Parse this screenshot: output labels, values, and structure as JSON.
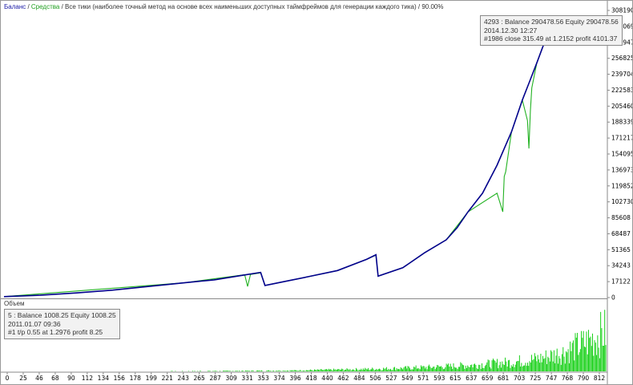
{
  "header": {
    "balance_label": "Баланс",
    "sep1": " / ",
    "equity_label": "Средства",
    "sep2": " / ",
    "mode_text": "Все тики (наиболее точный метод на основе всех наименьших доступных таймфреймов для генерации каждого тика)",
    "sep3": " / ",
    "quality": "90.00%"
  },
  "colors": {
    "balance": "#00008b",
    "equity": "#22b222",
    "volume": "#00cc00",
    "header_balance": "#1a1aa6",
    "header_equity": "#1f9e1f"
  },
  "tooltip_main": {
    "line1": "4293 : Balance 290478.56 Equity 290478.56",
    "line2": "2014.12.30 12:27",
    "line3": "#1986 close 315.49 at 1.2152 profit 4101.37"
  },
  "volume_panel": {
    "title": "Объем",
    "tooltip_line1": "5 : Balance 1008.25 Equity 1008.25",
    "tooltip_line2": "2011.01.07 09:36",
    "tooltip_line3": "#1 t/p 0.55 at 1.2976 profit 8.25"
  },
  "y_axis_labels": [
    "308190",
    "291069",
    "273947",
    "256825",
    "239704",
    "222583",
    "205460",
    "188339",
    "171217",
    "154095",
    "136973",
    "119852",
    "102730",
    "85608",
    "68487",
    "51365",
    "34243",
    "17122",
    "0"
  ],
  "x_axis_labels": [
    "0",
    "25",
    "46",
    "68",
    "90",
    "112",
    "134",
    "156",
    "178",
    "199",
    "221",
    "243",
    "265",
    "287",
    "309",
    "331",
    "353",
    "374",
    "396",
    "418",
    "440",
    "462",
    "484",
    "506",
    "527",
    "549",
    "571",
    "593",
    "615",
    "637",
    "659",
    "681",
    "703",
    "725",
    "747",
    "768",
    "790",
    "812"
  ],
  "chart_data": {
    "type": "line",
    "x_range": [
      0,
      830
    ],
    "y_range": [
      0,
      308190
    ],
    "grid": false,
    "series": [
      {
        "name": "Баланс",
        "x": [
          0,
          50,
          100,
          150,
          200,
          250,
          290,
          330,
          354,
          360,
          385,
          420,
          460,
          500,
          513,
          516,
          550,
          580,
          610,
          625,
          640,
          660,
          680,
          700,
          715,
          725,
          735,
          745,
          750
        ],
        "values": [
          1000,
          2500,
          5000,
          8000,
          12000,
          16000,
          19000,
          24000,
          27000,
          13000,
          17000,
          22500,
          29000,
          41000,
          46000,
          23000,
          32000,
          48000,
          62000,
          75000,
          92000,
          112000,
          142000,
          178000,
          212000,
          232000,
          252000,
          273000,
          290478
        ]
      },
      {
        "name": "Средства",
        "x": [
          0,
          250,
          332,
          336,
          340,
          354,
          360,
          385,
          420,
          460,
          500,
          513,
          516,
          550,
          580,
          610,
          640,
          680,
          688,
          690,
          692,
          700,
          715,
          722,
          724,
          726,
          728,
          735,
          745,
          750
        ],
        "values": [
          1000,
          16000,
          24500,
          12000,
          24800,
          26500,
          13000,
          17000,
          22500,
          29000,
          41000,
          45500,
          23000,
          32000,
          48000,
          62000,
          92000,
          112000,
          92000,
          130000,
          135000,
          178000,
          212000,
          190000,
          160000,
          200000,
          225000,
          252000,
          273000,
          290478
        ]
      }
    ],
    "volume": {
      "x": [
        0,
        100,
        200,
        300,
        400,
        500,
        550,
        600,
        650,
        700,
        740,
        770,
        800,
        830
      ],
      "values": [
        0,
        0,
        0.005,
        0.01,
        0.02,
        0.05,
        0.07,
        0.1,
        0.14,
        0.2,
        0.28,
        0.4,
        0.6,
        0.86
      ]
    }
  }
}
